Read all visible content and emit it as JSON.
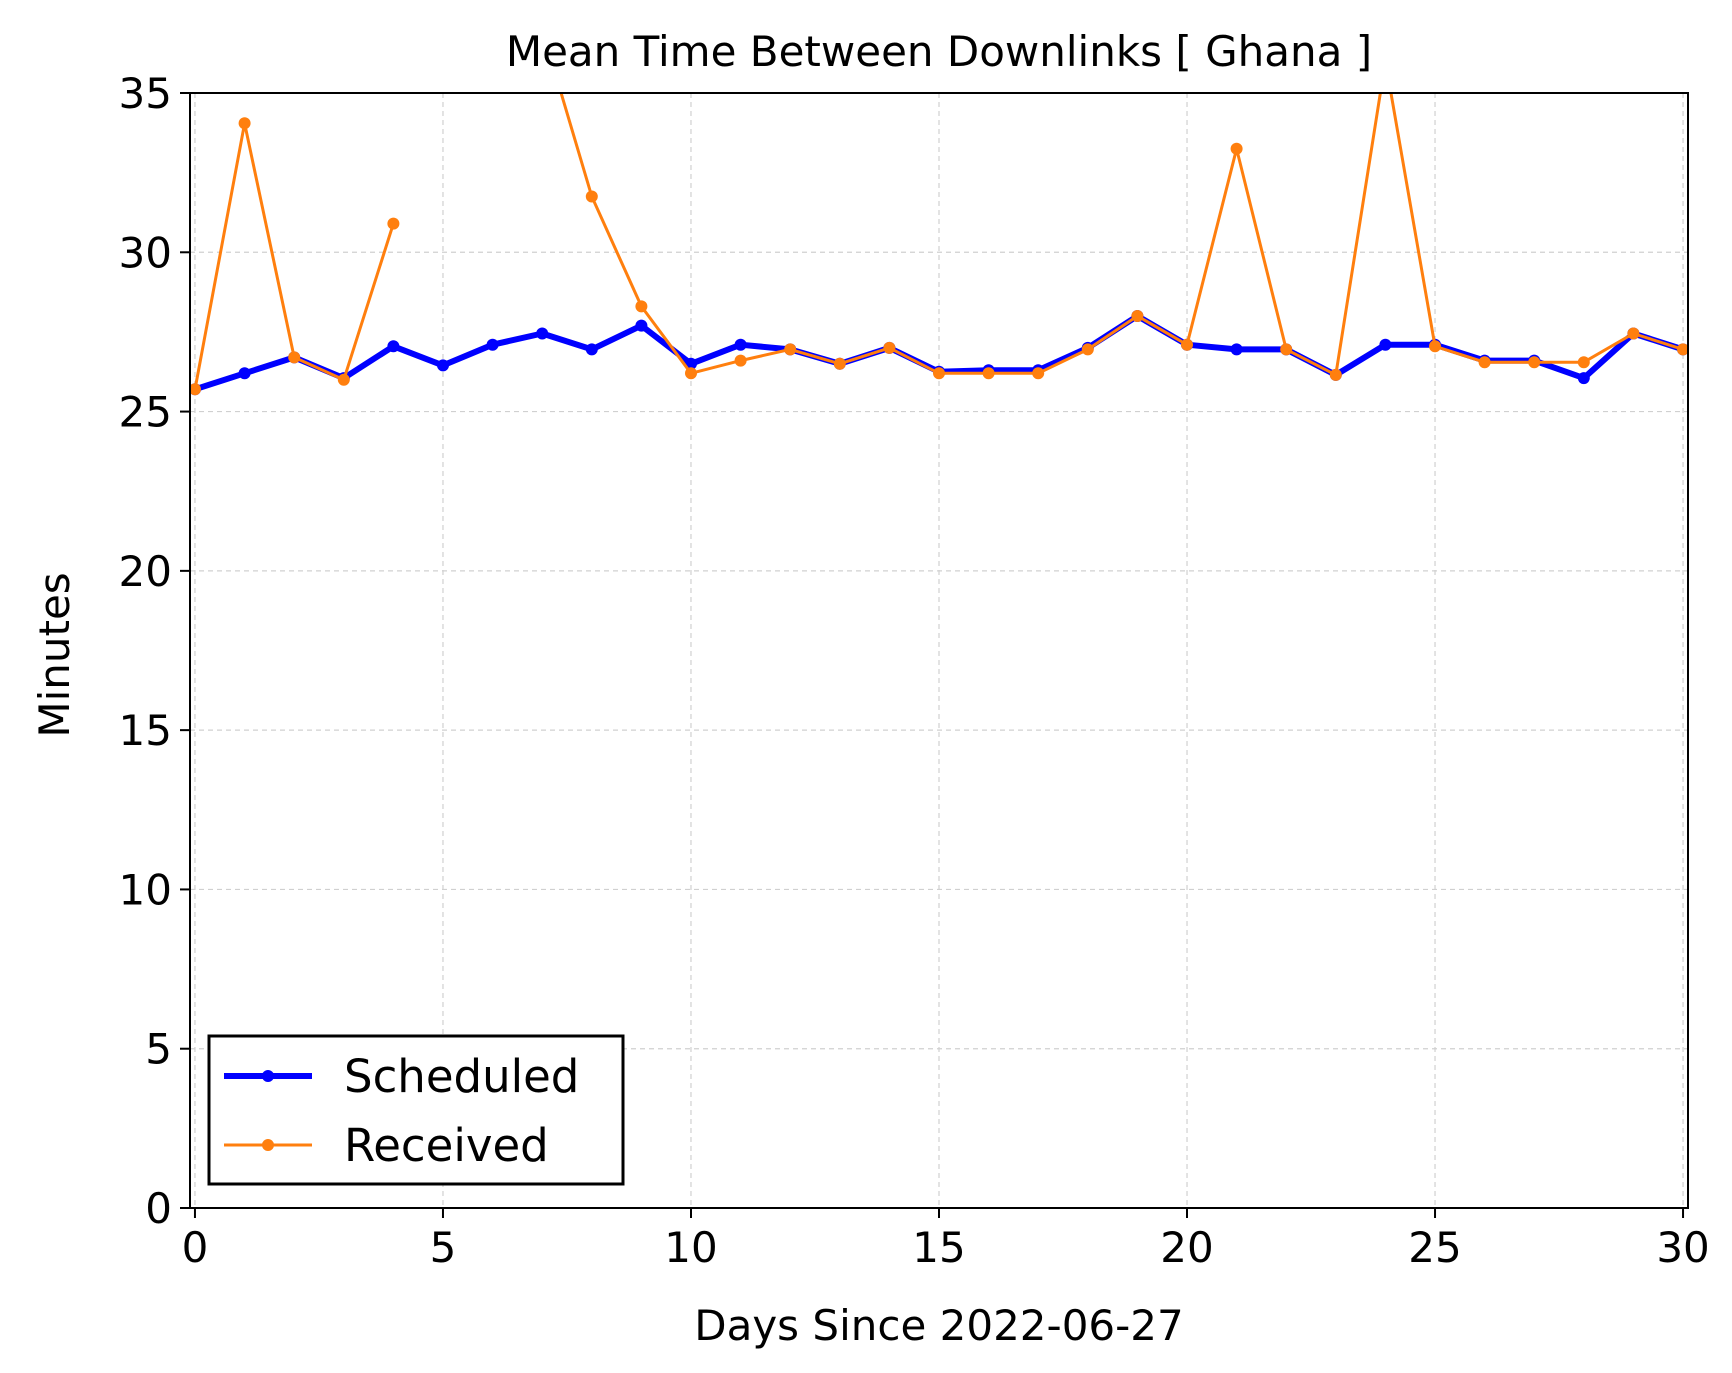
{
  "chart_data": {
    "type": "line",
    "title": "Mean Time Between Downlinks [ Ghana ]",
    "xlabel": "Days Since 2022-06-27",
    "ylabel": "Minutes",
    "xlim": [
      -0.1,
      30.1
    ],
    "ylim": [
      0,
      35
    ],
    "xticks": [
      0,
      5,
      10,
      15,
      20,
      25,
      30
    ],
    "yticks": [
      0,
      5,
      10,
      15,
      20,
      25,
      30,
      35
    ],
    "grid": true,
    "legend_position": "lower-left",
    "series": [
      {
        "name": "Scheduled",
        "color": "#0000ff",
        "x": [
          0,
          1,
          2,
          3,
          4,
          5,
          6,
          7,
          8,
          9,
          10,
          11,
          12,
          13,
          14,
          15,
          16,
          17,
          18,
          19,
          20,
          21,
          22,
          23,
          24,
          25,
          26,
          27,
          28,
          29,
          30
        ],
        "values": [
          25.7,
          26.2,
          26.7,
          26.05,
          27.05,
          26.45,
          27.1,
          27.45,
          26.95,
          27.7,
          26.5,
          27.1,
          26.95,
          26.5,
          27.0,
          26.25,
          26.3,
          26.3,
          27.0,
          28.0,
          27.1,
          26.95,
          26.95,
          26.15,
          27.1,
          27.1,
          26.6,
          26.6,
          26.05,
          27.45,
          26.95
        ]
      },
      {
        "name": "Received",
        "color": "#ff7f0e",
        "x": [
          0,
          1,
          2,
          3,
          4,
          null,
          7,
          8,
          9,
          10,
          11,
          12,
          13,
          14,
          15,
          16,
          17,
          18,
          19,
          20,
          21,
          22,
          23,
          24,
          25,
          26,
          27,
          28,
          29,
          30
        ],
        "values": [
          25.7,
          34.05,
          26.7,
          26.0,
          30.9,
          null,
          37.0,
          31.75,
          28.3,
          26.2,
          26.6,
          26.95,
          26.5,
          27.0,
          26.2,
          26.2,
          26.2,
          26.95,
          28.0,
          27.1,
          33.25,
          26.95,
          26.15,
          36.0,
          27.05,
          26.55,
          26.55,
          26.55,
          27.45,
          26.95
        ]
      }
    ]
  }
}
